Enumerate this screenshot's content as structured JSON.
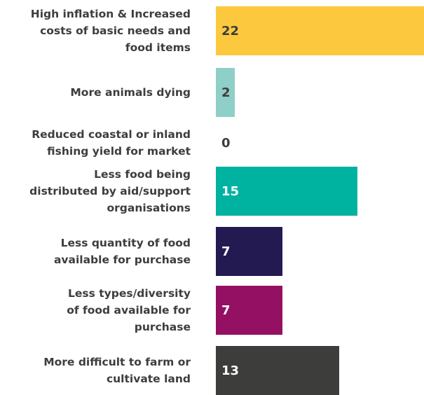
{
  "chart_data": {
    "type": "bar",
    "orientation": "horizontal",
    "categories": [
      "High inflation & Increased costs of basic needs and food items",
      "More animals dying",
      "Reduced coastal or inland fishing yield for market",
      "Less food being distributed by aid/support organisations",
      "Less quantity of food available for purchase",
      "Less types/diversity of food available for purchase",
      "More difficult to farm or cultivate land"
    ],
    "category_lines": [
      [
        "High inflation & Increased",
        "costs of basic needs and",
        "food items"
      ],
      [
        "More animals dying"
      ],
      [
        "Reduced coastal or inland",
        "fishing yield for market"
      ],
      [
        "Less food being",
        "distributed by aid/support",
        "organisations"
      ],
      [
        "Less quantity of food",
        "available for purchase"
      ],
      [
        "Less types/diversity",
        "of food available for",
        "purchase"
      ],
      [
        "More difficult to farm or",
        "cultivate land"
      ]
    ],
    "values": [
      22,
      2,
      0,
      15,
      7,
      7,
      13
    ],
    "value_labels": [
      "22",
      "2",
      "0",
      "15",
      "7",
      "7",
      "13"
    ],
    "colors": [
      "#fcc93e",
      "#8ecfc8",
      "#ffffff",
      "#00b2a0",
      "#231a52",
      "#941063",
      "#3d3d3c"
    ],
    "label_colors": [
      "#3d3d3d",
      "#3d3d3d",
      "#3d3d3d",
      "#ffffff",
      "#ffffff",
      "#ffffff",
      "#ffffff"
    ],
    "xlim": [
      0,
      22
    ],
    "grid": false,
    "legend": "none",
    "title": "",
    "xlabel": "",
    "ylabel": ""
  }
}
